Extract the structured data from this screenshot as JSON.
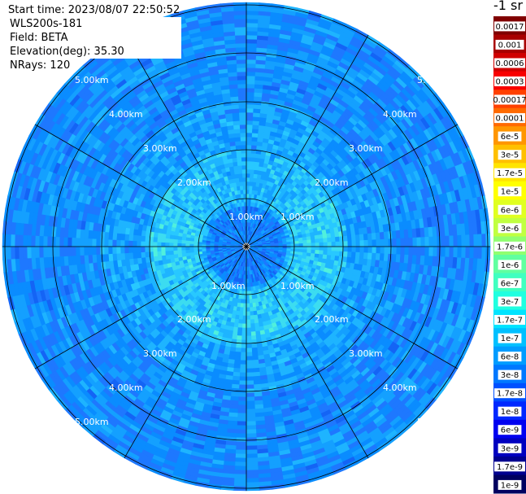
{
  "info": {
    "start_time": "Start time: 2023/08/07 22:50:52",
    "instrument": "WLS200s-181",
    "field": "Field: BETA",
    "elevation": "Elevation(deg): 35.30",
    "nrays": "NRays: 120"
  },
  "chart_data": {
    "type": "heatmap",
    "projection": "polar-ppi",
    "field": "BETA",
    "elevation_deg": 35.3,
    "nrays": 120,
    "range_max_km": 5.0,
    "range_ring_labels": [
      "1.00km",
      "2.00km",
      "3.00km",
      "4.00km",
      "5.00km"
    ],
    "spoke_count": 12,
    "colorbar": {
      "unit": "-1 sr",
      "labels": [
        "0.0017",
        "0.001",
        "0.0006",
        "0.0003",
        "0.00017",
        "0.0001",
        "6e-5",
        "3e-5",
        "1.7e-5",
        "1e-5",
        "6e-6",
        "3e-6",
        "1.7e-6",
        "1e-6",
        "6e-7",
        "3e-7",
        "1.7e-7",
        "1e-7",
        "6e-8",
        "3e-8",
        "1.7e-8",
        "1e-8",
        "6e-9",
        "3e-9",
        "1.7e-9",
        "1e-9"
      ],
      "colors": [
        "#800000",
        "#a80000",
        "#d00000",
        "#f80000",
        "#ff4000",
        "#ff6a00",
        "#ff9600",
        "#ffc000",
        "#ffe400",
        "#ffff00",
        "#e0ff20",
        "#c0ff40",
        "#90ff70",
        "#60ffa0",
        "#40ffc0",
        "#20ffe0",
        "#00e4ff",
        "#00c0ff",
        "#009cff",
        "#0078ff",
        "#0050ff",
        "#0028ff",
        "#0000f0",
        "#0000c0",
        "#000090",
        "#000060"
      ]
    },
    "dominant_value_range": [
      "1e-8",
      "1.7e-7"
    ],
    "notes": "Backscatter values are highest (green/cyan) within ~2 km; outer rings are blue."
  },
  "colors": {
    "grid": "#000000",
    "label": "#ffffff",
    "background": "#ffffff"
  }
}
